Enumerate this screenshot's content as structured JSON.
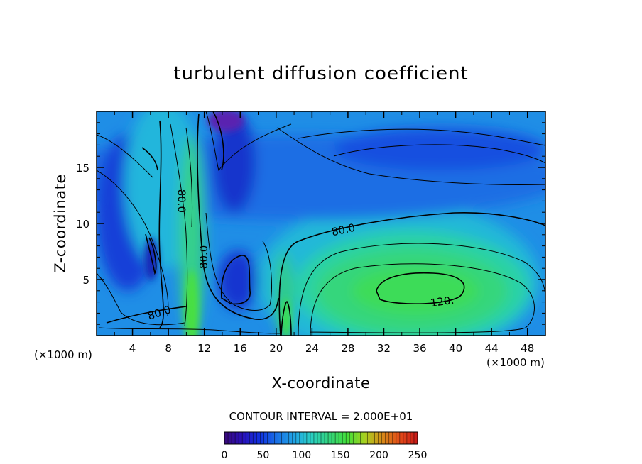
{
  "chart_data": {
    "type": "contour",
    "title": "turbulent diffusion coefficient",
    "xlabel": "X-coordinate",
    "ylabel": "Z-coordinate",
    "x_unit": "(×1000 m)",
    "z_unit": "(×1000 m)",
    "xlim": [
      0,
      50
    ],
    "ylim": [
      0,
      20
    ],
    "x_ticks": [
      4,
      8,
      12,
      16,
      20,
      24,
      28,
      32,
      36,
      40,
      44,
      48
    ],
    "y_ticks": [
      5,
      10,
      15
    ],
    "contour_interval_text": "CONTOUR INTERVAL = 2.000E+01",
    "contour_labels": [
      {
        "text": "80.0",
        "x": 27.5,
        "y": 9.4,
        "angle": -12
      },
      {
        "text": "120.",
        "x": 38.5,
        "y": 3.0,
        "angle": -8
      },
      {
        "text": "80.0",
        "x": 7.0,
        "y": 2.0,
        "angle": -18
      },
      {
        "text": "80.0",
        "x": 12.0,
        "y": 7.0,
        "angle": -90
      },
      {
        "text": "80.0",
        "x": 9.4,
        "y": 12.0,
        "angle": 90
      }
    ],
    "colorbar": {
      "min": 0,
      "max": 250,
      "ticks": [
        0,
        50,
        100,
        150,
        200,
        250
      ],
      "colors": [
        "#3a0a7a",
        "#2a10b8",
        "#1030e0",
        "#1a72e6",
        "#21a6e6",
        "#2ad0c0",
        "#33d47a",
        "#44e03a",
        "#a8d020",
        "#d88a18",
        "#e24a18",
        "#c81818"
      ]
    }
  }
}
